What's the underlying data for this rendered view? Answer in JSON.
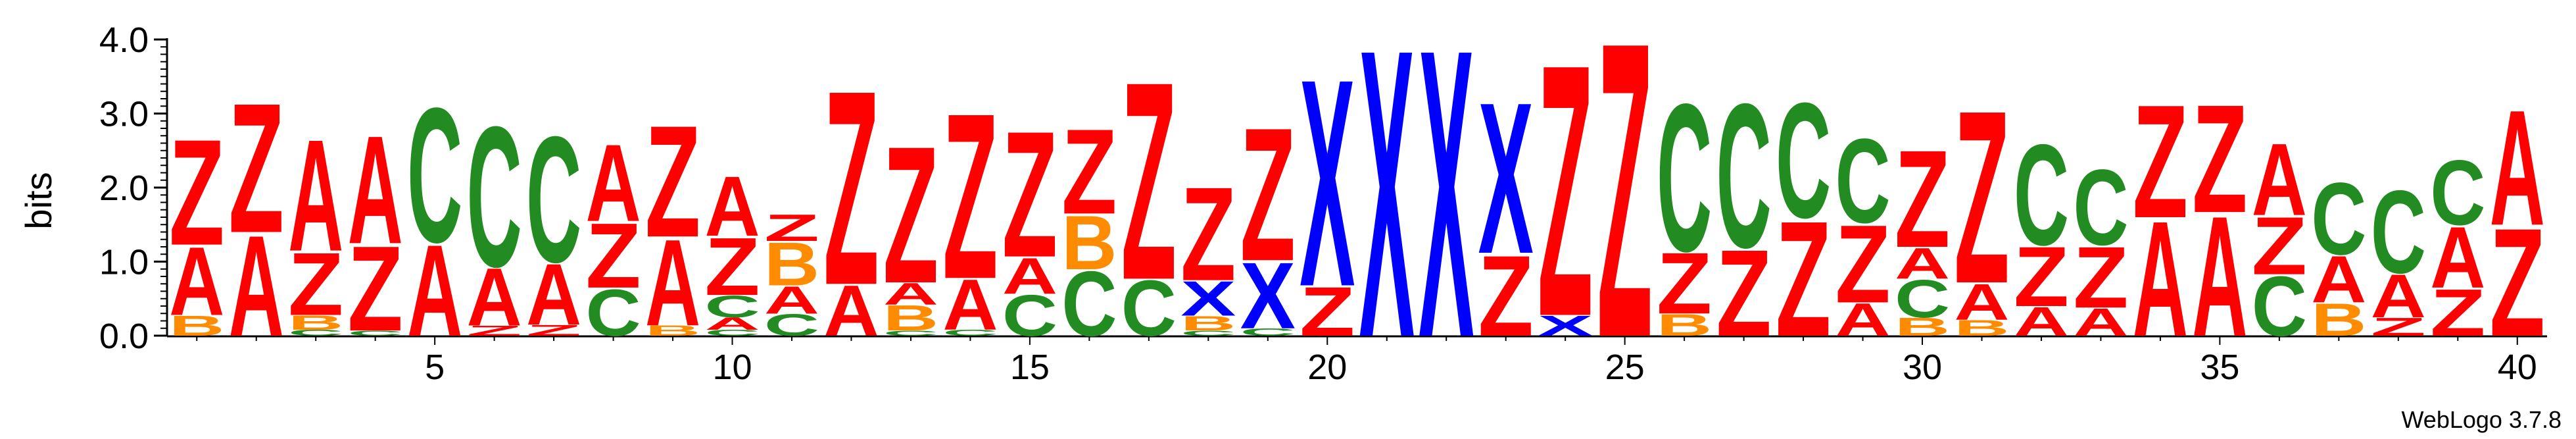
{
  "chart_data": {
    "type": "sequence_logo",
    "ylabel": "bits",
    "ylim": [
      0,
      4.0
    ],
    "yticks": [
      "0.0",
      "1.0",
      "2.0",
      "3.0",
      "4.0"
    ],
    "xticks": [
      5,
      10,
      15,
      20,
      25,
      30,
      35,
      40
    ],
    "positions": [
      1,
      40
    ],
    "colors": {
      "Z": "#ff0000",
      "A": "#ff0000",
      "C": "#228b22",
      "B": "#ff8c00",
      "X": "#0000ff"
    },
    "stacks": [
      [
        {
          "l": "B",
          "h": 0.28
        },
        {
          "l": "A",
          "h": 0.95
        },
        {
          "l": "Z",
          "h": 1.47
        }
      ],
      [
        {
          "l": "A",
          "h": 1.4
        },
        {
          "l": "Z",
          "h": 1.8
        }
      ],
      [
        {
          "l": "C",
          "h": 0.08
        },
        {
          "l": "B",
          "h": 0.2
        },
        {
          "l": "Z",
          "h": 0.87
        },
        {
          "l": "A",
          "h": 1.55
        }
      ],
      [
        {
          "l": "C",
          "h": 0.07
        },
        {
          "l": "Z",
          "h": 1.18
        },
        {
          "l": "A",
          "h": 1.5
        }
      ],
      [
        {
          "l": "A",
          "h": 1.27
        },
        {
          "l": "C",
          "h": 1.87
        }
      ],
      [
        {
          "l": "Z",
          "h": 0.14
        },
        {
          "l": "A",
          "h": 0.8
        },
        {
          "l": "C",
          "h": 1.95
        }
      ],
      [
        {
          "l": "Z",
          "h": 0.15
        },
        {
          "l": "A",
          "h": 0.85
        },
        {
          "l": "C",
          "h": 1.75
        }
      ],
      [
        {
          "l": "C",
          "h": 0.65
        },
        {
          "l": "Z",
          "h": 0.9
        },
        {
          "l": "A",
          "h": 1.07
        }
      ],
      [
        {
          "l": "B",
          "h": 0.14
        },
        {
          "l": "A",
          "h": 1.2
        },
        {
          "l": "Z",
          "h": 1.55
        }
      ],
      [
        {
          "l": "C",
          "h": 0.08
        },
        {
          "l": "A",
          "h": 0.17
        },
        {
          "l": "C",
          "h": 0.3
        },
        {
          "l": "Z",
          "h": 0.8
        },
        {
          "l": "A",
          "h": 0.83
        }
      ],
      [
        {
          "l": "C",
          "h": 0.3
        },
        {
          "l": "A",
          "h": 0.38
        },
        {
          "l": "B",
          "h": 0.6
        },
        {
          "l": "Z",
          "h": 0.37
        }
      ],
      [
        {
          "l": "A",
          "h": 0.7
        },
        {
          "l": "Z",
          "h": 2.7
        }
      ],
      [
        {
          "l": "C",
          "h": 0.07
        },
        {
          "l": "B",
          "h": 0.35
        },
        {
          "l": "A",
          "h": 0.3
        },
        {
          "l": "Z",
          "h": 1.9
        }
      ],
      [
        {
          "l": "C",
          "h": 0.08
        },
        {
          "l": "A",
          "h": 0.7
        },
        {
          "l": "Z",
          "h": 2.3
        }
      ],
      [
        {
          "l": "C",
          "h": 0.57
        },
        {
          "l": "A",
          "h": 0.5
        },
        {
          "l": "Z",
          "h": 1.75
        }
      ],
      [
        {
          "l": "C",
          "h": 0.9
        },
        {
          "l": "B",
          "h": 0.75
        },
        {
          "l": "Z",
          "h": 1.18
        }
      ],
      [
        {
          "l": "C",
          "h": 0.77
        },
        {
          "l": "Z",
          "h": 2.75
        }
      ],
      [
        {
          "l": "C",
          "h": 0.07
        },
        {
          "l": "B",
          "h": 0.2
        },
        {
          "l": "X",
          "h": 0.48
        },
        {
          "l": "Z",
          "h": 1.3
        }
      ],
      [
        {
          "l": "C",
          "h": 0.1
        },
        {
          "l": "X",
          "h": 0.92
        },
        {
          "l": "Z",
          "h": 1.85
        }
      ],
      [
        {
          "l": "Z",
          "h": 0.68
        },
        {
          "l": "X",
          "h": 2.88
        }
      ],
      [
        {
          "l": "X",
          "h": 4.0
        }
      ],
      [
        {
          "l": "X",
          "h": 4.0
        }
      ],
      [
        {
          "l": "Z",
          "h": 1.12
        },
        {
          "l": "X",
          "h": 2.1
        }
      ],
      [
        {
          "l": "X",
          "h": 0.28
        },
        {
          "l": "Z",
          "h": 3.5
        }
      ],
      [
        {
          "l": "Z",
          "h": 4.1
        }
      ],
      [
        {
          "l": "B",
          "h": 0.3
        },
        {
          "l": "Z",
          "h": 0.85
        },
        {
          "l": "C",
          "h": 2.05
        }
      ],
      [
        {
          "l": "Z",
          "h": 1.2
        },
        {
          "l": "C",
          "h": 2.0
        }
      ],
      [
        {
          "l": "Z",
          "h": 1.6
        },
        {
          "l": "C",
          "h": 1.6
        }
      ],
      [
        {
          "l": "A",
          "h": 0.45
        },
        {
          "l": "Z",
          "h": 1.08
        },
        {
          "l": "C",
          "h": 1.17
        }
      ],
      [
        {
          "l": "B",
          "h": 0.25
        },
        {
          "l": "C",
          "h": 0.52
        },
        {
          "l": "A",
          "h": 0.43
        },
        {
          "l": "Z",
          "h": 1.35
        }
      ],
      [
        {
          "l": "B",
          "h": 0.22
        },
        {
          "l": "A",
          "h": 0.5
        },
        {
          "l": "Z",
          "h": 2.4
        }
      ],
      [
        {
          "l": "A",
          "h": 0.4
        },
        {
          "l": "Z",
          "h": 0.83
        },
        {
          "l": "C",
          "h": 1.4
        }
      ],
      [
        {
          "l": "A",
          "h": 0.38
        },
        {
          "l": "Z",
          "h": 0.85
        },
        {
          "l": "C",
          "h": 1.05
        }
      ],
      [
        {
          "l": "A",
          "h": 1.6
        },
        {
          "l": "Z",
          "h": 1.57
        }
      ],
      [
        {
          "l": "A",
          "h": 1.67
        },
        {
          "l": "Z",
          "h": 1.5
        }
      ],
      [
        {
          "l": "C",
          "h": 0.83
        },
        {
          "l": "Z",
          "h": 0.8
        },
        {
          "l": "A",
          "h": 1.0
        }
      ],
      [
        {
          "l": "B",
          "h": 0.45
        },
        {
          "l": "A",
          "h": 0.65
        },
        {
          "l": "C",
          "h": 1.0
        }
      ],
      [
        {
          "l": "Z",
          "h": 0.25
        },
        {
          "l": "A",
          "h": 0.6
        },
        {
          "l": "C",
          "h": 1.15
        }
      ],
      [
        {
          "l": "Z",
          "h": 0.65
        },
        {
          "l": "A",
          "h": 0.85
        },
        {
          "l": "C",
          "h": 0.9
        }
      ],
      [
        {
          "l": "Z",
          "h": 1.5
        },
        {
          "l": "A",
          "h": 1.6
        }
      ]
    ]
  },
  "footer": {
    "credit": "WebLogo 3.7.8"
  }
}
